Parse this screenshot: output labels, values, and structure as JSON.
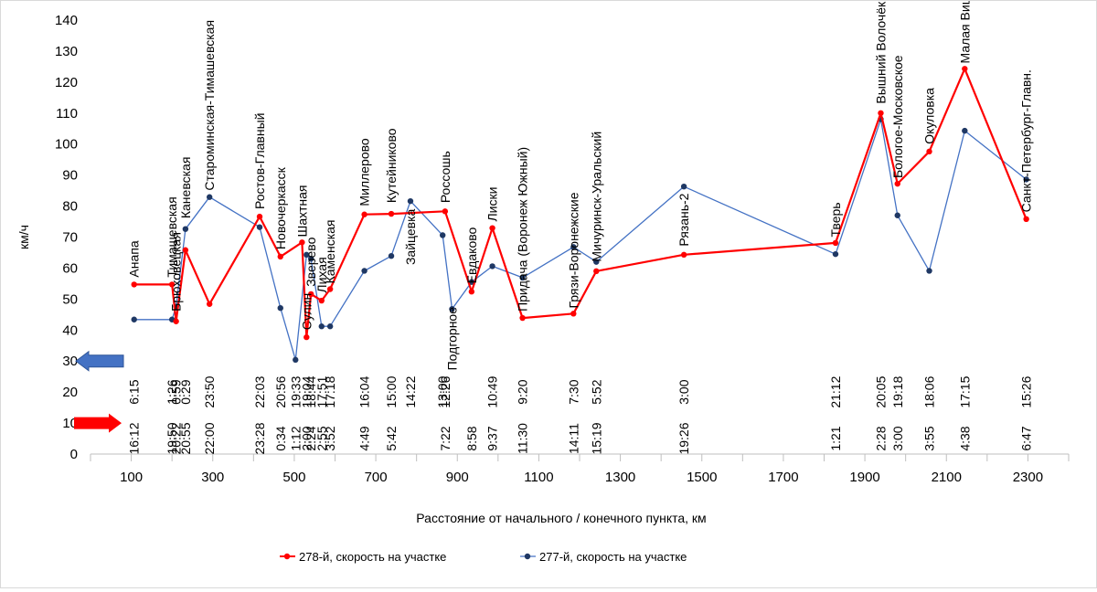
{
  "chart_data": {
    "type": "line",
    "title": "",
    "xlabel": "Расстояние от начального / конечного пункта, км",
    "ylabel": "км/ч",
    "xlim": [
      0,
      2400
    ],
    "ylim": [
      0,
      140
    ],
    "xticks": [
      100,
      300,
      500,
      700,
      900,
      1100,
      1300,
      1500,
      1700,
      1900,
      2100,
      2300
    ],
    "yticks": [
      0,
      10,
      20,
      30,
      40,
      50,
      60,
      70,
      80,
      90,
      100,
      110,
      120,
      130,
      140
    ],
    "colors": {
      "train278": "#ff0000",
      "train277": "#1f3864",
      "train277_line": "#4472c4"
    },
    "series": [
      {
        "name": "278-й, скорость на участке",
        "x": [
          107,
          200,
          210,
          233,
          292,
          415,
          466,
          519,
          530,
          541,
          567,
          588,
          672,
          738,
          870,
          935,
          986,
          1060,
          1185,
          1241,
          1456,
          1828,
          1939,
          1980,
          2058,
          2145,
          2296
        ],
        "y": [
          54.7,
          54.7,
          42.8,
          65.8,
          48.4,
          76.6,
          63.7,
          68.3,
          37.7,
          51.6,
          49.5,
          53.2,
          77.3,
          77.5,
          78.3,
          52.4,
          72.9,
          43.9,
          45.3,
          59.0,
          64.3,
          68.1,
          110.0,
          87.2,
          97.6,
          124.3,
          75.8
        ]
      },
      {
        "name": "277-й, скорость на участке",
        "x": [
          107,
          200,
          210,
          233,
          292,
          415,
          466,
          503,
          530,
          541,
          567,
          588,
          672,
          738,
          785,
          864,
          887,
          935,
          986,
          1060,
          1185,
          1241,
          1456,
          1828,
          1939,
          1980,
          2058,
          2145,
          2296
        ],
        "y": [
          43.4,
          43.4,
          47.6,
          72.6,
          82.9,
          73.2,
          47.1,
          30.4,
          64.3,
          63.0,
          41.2,
          41.2,
          59.1,
          63.9,
          81.6,
          70.6,
          46.8,
          55.5,
          60.6,
          56.9,
          66.8,
          62.0,
          86.3,
          64.5,
          108.0,
          77.0,
          59.1,
          104.3,
          88.6
        ]
      }
    ],
    "stations": [
      {
        "name": "Анапа",
        "x": 107,
        "y": 57
      },
      {
        "name": "Тимашевская",
        "x": 200,
        "y": 57
      },
      {
        "name": "Брюховецкая",
        "x": 210,
        "y": 46
      },
      {
        "name": "Каневская",
        "x": 233,
        "y": 76
      },
      {
        "name": "Староминская-Тимашевская",
        "x": 292,
        "y": 85
      },
      {
        "name": "Ростов-Главный",
        "x": 415,
        "y": 79
      },
      {
        "name": "Новочеркасск",
        "x": 466,
        "y": 66
      },
      {
        "name": "Шахтная",
        "x": 519,
        "y": 70
      },
      {
        "name": "Сулин",
        "x": 530,
        "y": 40
      },
      {
        "name": "Зверево",
        "x": 541,
        "y": 54
      },
      {
        "name": "Лихая",
        "x": 567,
        "y": 52
      },
      {
        "name": "Каменская",
        "x": 588,
        "y": 55
      },
      {
        "name": "Миллерово",
        "x": 672,
        "y": 80
      },
      {
        "name": "Кутейниково",
        "x": 738,
        "y": 81
      },
      {
        "name": "Зайцевка",
        "x": 785,
        "y": 61
      },
      {
        "name": "Россошь",
        "x": 870,
        "y": 81
      },
      {
        "name": "Подгорное",
        "x": 887,
        "y": 27
      },
      {
        "name": "Евдаково",
        "x": 935,
        "y": 55
      },
      {
        "name": "Лиски",
        "x": 986,
        "y": 75
      },
      {
        "name": "Придача (Воронеж Южный)",
        "x": 1060,
        "y": 46
      },
      {
        "name": "Грязи-Воронежские",
        "x": 1185,
        "y": 47
      },
      {
        "name": "Мичуринск-Уральский",
        "x": 1241,
        "y": 62
      },
      {
        "name": "Рязань-2",
        "x": 1456,
        "y": 67
      },
      {
        "name": "Тверь",
        "x": 1828,
        "y": 70
      },
      {
        "name": "Вышний Волочёк",
        "x": 1939,
        "y": 113
      },
      {
        "name": "Бологое-Московское",
        "x": 1980,
        "y": 89
      },
      {
        "name": "Окуловка",
        "x": 2058,
        "y": 100
      },
      {
        "name": "Малая Вишера",
        "x": 2145,
        "y": 126
      },
      {
        "name": "Санкт-Петербург-Главн.",
        "x": 2296,
        "y": 78
      }
    ],
    "times_277": [
      {
        "x": 107,
        "t": "6:15"
      },
      {
        "x": 200,
        "t": "1:26"
      },
      {
        "x": 210,
        "t": "0:59"
      },
      {
        "x": 233,
        "t": "0:29"
      },
      {
        "x": 292,
        "t": "23:50"
      },
      {
        "x": 415,
        "t": "22:03"
      },
      {
        "x": 466,
        "t": "20:56"
      },
      {
        "x": 503,
        "t": "19:33"
      },
      {
        "x": 530,
        "t": "19:04"
      },
      {
        "x": 541,
        "t": "18:44"
      },
      {
        "x": 567,
        "t": "17:51"
      },
      {
        "x": 588,
        "t": "17:18"
      },
      {
        "x": 672,
        "t": "16:04"
      },
      {
        "x": 738,
        "t": "15:00"
      },
      {
        "x": 785,
        "t": "14:22"
      },
      {
        "x": 864,
        "t": "13:00"
      },
      {
        "x": 870,
        "t": "12:26"
      },
      {
        "x": 986,
        "t": "10:49"
      },
      {
        "x": 1060,
        "t": "9:20"
      },
      {
        "x": 1185,
        "t": "7:30"
      },
      {
        "x": 1241,
        "t": "5:52"
      },
      {
        "x": 1456,
        "t": "3:00"
      },
      {
        "x": 1828,
        "t": "21:12"
      },
      {
        "x": 1939,
        "t": "20:05"
      },
      {
        "x": 1980,
        "t": "19:18"
      },
      {
        "x": 2058,
        "t": "18:06"
      },
      {
        "x": 2145,
        "t": "17:15"
      },
      {
        "x": 2296,
        "t": "15:26"
      }
    ],
    "times_278": [
      {
        "x": 107,
        "t": "16:12"
      },
      {
        "x": 200,
        "t": "19:50"
      },
      {
        "x": 210,
        "t": "20:22"
      },
      {
        "x": 233,
        "t": "20:55"
      },
      {
        "x": 292,
        "t": "22:00"
      },
      {
        "x": 415,
        "t": "23:28"
      },
      {
        "x": 466,
        "t": "0:34"
      },
      {
        "x": 503,
        "t": "1:12"
      },
      {
        "x": 530,
        "t": "2:00"
      },
      {
        "x": 541,
        "t": "2:24"
      },
      {
        "x": 567,
        "t": "2:55"
      },
      {
        "x": 588,
        "t": "3:52"
      },
      {
        "x": 672,
        "t": "4:49"
      },
      {
        "x": 738,
        "t": "5:42"
      },
      {
        "x": 870,
        "t": "7:22"
      },
      {
        "x": 935,
        "t": "8:58"
      },
      {
        "x": 986,
        "t": "9:37"
      },
      {
        "x": 1060,
        "t": "11:30"
      },
      {
        "x": 1185,
        "t": "14:11"
      },
      {
        "x": 1241,
        "t": "15:19"
      },
      {
        "x": 1456,
        "t": "19:26"
      },
      {
        "x": 1828,
        "t": "1:21"
      },
      {
        "x": 1939,
        "t": "2:28"
      },
      {
        "x": 1980,
        "t": "3:00"
      },
      {
        "x": 2058,
        "t": "3:55"
      },
      {
        "x": 2145,
        "t": "4:38"
      },
      {
        "x": 2296,
        "t": "6:47"
      }
    ],
    "direction_arrows": [
      {
        "name": "277 direction",
        "direction": "left",
        "y": 30,
        "color": "#4472c4"
      },
      {
        "name": "278 direction",
        "direction": "right",
        "y": 10,
        "color": "#ff0000"
      }
    ],
    "legend": {
      "position": "bottom"
    }
  }
}
